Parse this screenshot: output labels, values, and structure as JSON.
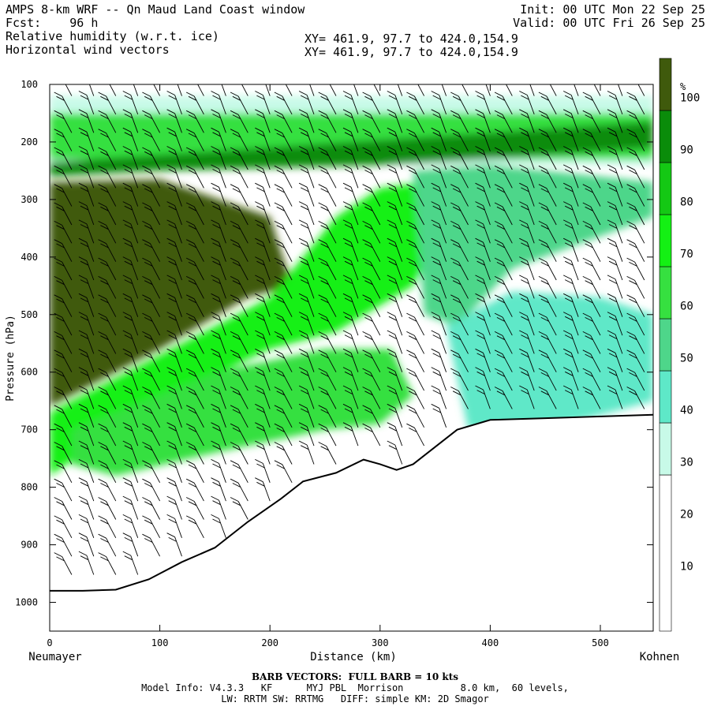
{
  "header": {
    "title": "AMPS 8-km WRF -- Qn Maud Land Coast window",
    "forecast": "Fcst:    96 h",
    "field1": "Relative humidity (w.r.t. ice)",
    "field2": "Horizontal wind vectors",
    "init": "Init: 00 UTC Mon 22 Sep 25",
    "valid": "Valid: 00 UTC Fri 26 Sep 25",
    "xy1": "XY= 461.9, 97.7 to 424.0,154.9",
    "xy2": "XY= 461.9, 97.7 to 424.0,154.9"
  },
  "footer": {
    "barb_note": "BARB VECTORS:  FULL BARB = 10 kts",
    "model_line1": "Model Info: V4.3.3   KF      MYJ PBL  Morrison          8.0 km,  60 levels,",
    "model_line2": "LW: RRTM SW: RRTMG   DIFF: simple KM: 2D Smagor"
  },
  "chart_data": {
    "type": "heatmap",
    "title": "Relative humidity (w.r.t. ice)",
    "xlabel": "Distance (km)",
    "ylabel": "Pressure (hPa)",
    "x_start_label": "Neumayer",
    "x_end_label": "Kohnen",
    "xlim": [
      0,
      548
    ],
    "ylim": [
      100,
      1050
    ],
    "y_inverted": true,
    "x_ticks": [
      0,
      100,
      200,
      300,
      400,
      500
    ],
    "y_ticks": [
      100,
      200,
      300,
      400,
      500,
      600,
      700,
      800,
      900,
      1000
    ],
    "colorbar": {
      "unit": "%",
      "ticks": [
        10,
        20,
        30,
        40,
        50,
        60,
        70,
        80,
        90,
        100
      ],
      "levels": [
        {
          "min": 0,
          "max": 30,
          "color": "#ffffff"
        },
        {
          "min": 30,
          "max": 40,
          "color": "#c8fae8"
        },
        {
          "min": 40,
          "max": 50,
          "color": "#5ee8c8"
        },
        {
          "min": 50,
          "max": 60,
          "color": "#4ed68a"
        },
        {
          "min": 60,
          "max": 70,
          "color": "#36e040"
        },
        {
          "min": 70,
          "max": 80,
          "color": "#14f014"
        },
        {
          "min": 80,
          "max": 90,
          "color": "#14c814"
        },
        {
          "min": 90,
          "max": 100,
          "color": "#0a8c0a"
        },
        {
          "min": 100,
          "max": 110,
          "color": "#3f5a0c"
        }
      ]
    },
    "terrain_surface": {
      "distance_km": [
        0,
        30,
        60,
        90,
        120,
        150,
        180,
        210,
        230,
        260,
        285,
        300,
        315,
        330,
        350,
        370,
        400,
        450,
        500,
        548
      ],
      "pressure_hPa": [
        980,
        980,
        978,
        960,
        930,
        905,
        860,
        820,
        790,
        775,
        752,
        760,
        770,
        760,
        730,
        700,
        683,
        680,
        677,
        674
      ]
    },
    "rh_regions": [
      {
        "name": "upper-saturated-layer",
        "value_pct": 95,
        "distance_km": [
          0,
          548,
          548,
          400,
          300,
          200,
          100,
          0
        ],
        "pressure_hPa": [
          235,
          165,
          210,
          230,
          240,
          245,
          250,
          260
        ]
      },
      {
        "name": "mid-level-saturated-wedge",
        "value_pct": 105,
        "distance_km": [
          0,
          100,
          200,
          220,
          180,
          100,
          0
        ],
        "pressure_hPa": [
          270,
          265,
          330,
          450,
          470,
          560,
          660
        ]
      },
      {
        "name": "sloping-moist-band",
        "value_pct": 75,
        "distance_km": [
          0,
          200,
          260,
          300,
          340,
          360,
          330,
          260,
          200,
          100,
          0
        ],
        "pressure_hPa": [
          670,
          470,
          330,
          280,
          270,
          330,
          450,
          530,
          560,
          650,
          780
        ]
      },
      {
        "name": "low-level-moist-band",
        "value_pct": 65,
        "distance_km": [
          20,
          150,
          250,
          310,
          330,
          300,
          250,
          150,
          60,
          20
        ],
        "pressure_hPa": [
          700,
          600,
          560,
          560,
          640,
          690,
          700,
          740,
          780,
          760
        ]
      },
      {
        "name": "eastern-upper-moist-band",
        "value_pct": 55,
        "distance_km": [
          330,
          400,
          500,
          548,
          548,
          420,
          370,
          340
        ],
        "pressure_hPa": [
          250,
          240,
          260,
          270,
          330,
          420,
          520,
          500
        ]
      },
      {
        "name": "eastern-lower-moist-band",
        "value_pct": 45,
        "distance_km": [
          360,
          420,
          500,
          548,
          548,
          470,
          420,
          380
        ],
        "pressure_hPa": [
          520,
          460,
          470,
          500,
          650,
          690,
          700,
          700
        ]
      }
    ],
    "wind_barb_columns_km": [
      20,
      40,
      60,
      80,
      100,
      120,
      140,
      160,
      180,
      200,
      220,
      240,
      260,
      280,
      300,
      320,
      340,
      360,
      380,
      400,
      420,
      440,
      460,
      480,
      500,
      520,
      540
    ]
  }
}
